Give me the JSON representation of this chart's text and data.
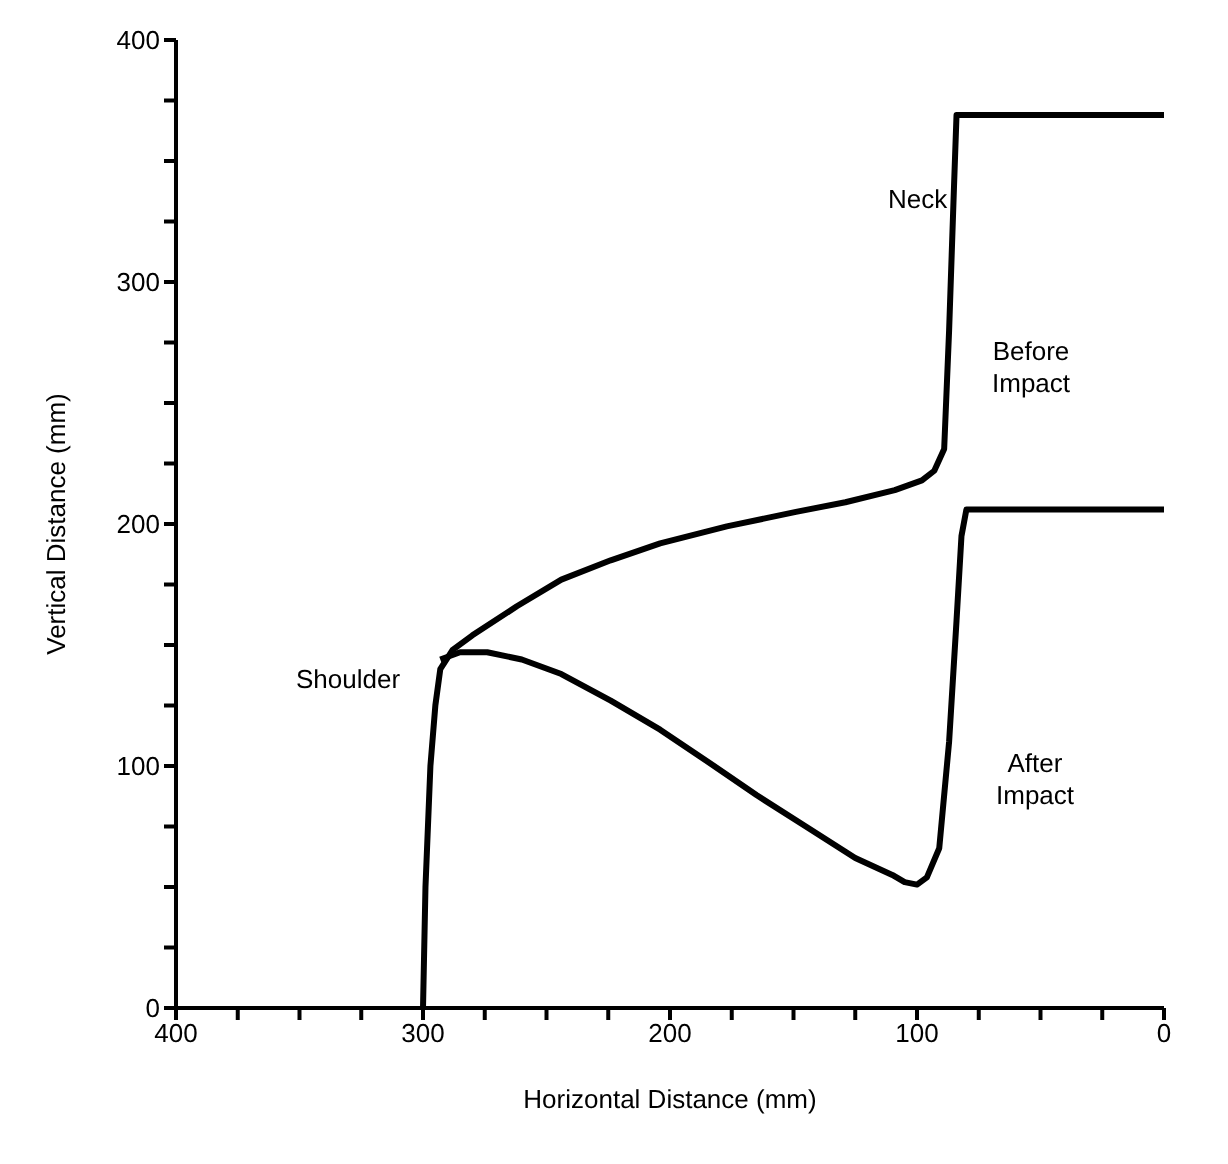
{
  "chart_data": {
    "type": "line",
    "xlabel": "Horizontal Distance (mm)",
    "ylabel": "Vertical Distance (mm)",
    "xlim": [
      400,
      0
    ],
    "ylim": [
      0,
      400
    ],
    "xticks": [
      400,
      {
        "value": 375,
        "label": null
      },
      {
        "value": 350,
        "label": null
      },
      {
        "value": 325,
        "label": null
      },
      300,
      {
        "value": 275,
        "label": null
      },
      {
        "value": 250,
        "label": null
      },
      {
        "value": 225,
        "label": null
      },
      200,
      {
        "value": 175,
        "label": null
      },
      {
        "value": 150,
        "label": null
      },
      {
        "value": 125,
        "label": null
      },
      100,
      {
        "value": 75,
        "label": null
      },
      {
        "value": 50,
        "label": null
      },
      {
        "value": 25,
        "label": null
      },
      0
    ],
    "yticks": [
      0,
      {
        "value": 25,
        "label": null
      },
      {
        "value": 50,
        "label": null
      },
      {
        "value": 75,
        "label": null
      },
      100,
      {
        "value": 125,
        "label": null
      },
      {
        "value": 150,
        "label": null
      },
      {
        "value": 175,
        "label": null
      },
      200,
      {
        "value": 225,
        "label": null
      },
      {
        "value": 250,
        "label": null
      },
      {
        "value": 275,
        "label": null
      },
      300,
      {
        "value": 325,
        "label": null
      },
      {
        "value": 350,
        "label": null
      },
      {
        "value": 375,
        "label": null
      },
      400
    ],
    "marker": "none",
    "line_style": "solid",
    "series": [
      {
        "name": "Before Impact",
        "color": "#000000",
        "x": [
          300,
          299,
          297,
          295,
          293,
          288,
          280,
          262,
          244,
          224,
          204,
          177,
          149,
          129,
          109,
          98,
          93,
          89,
          87,
          85,
          84,
          40,
          0
        ],
        "values": [
          0,
          50,
          100,
          125,
          140,
          148,
          154,
          166,
          177,
          185,
          192,
          199,
          205,
          209,
          214,
          218,
          222,
          231,
          280,
          340,
          369,
          369,
          369
        ]
      },
      {
        "name": "After Impact",
        "color": "#000000",
        "x": [
          293,
          285,
          274,
          260,
          244,
          224,
          204,
          185,
          165,
          145,
          125,
          110,
          105,
          100,
          96,
          91,
          87,
          84,
          82,
          80,
          40,
          0
        ],
        "values": [
          144,
          147,
          147,
          144,
          138,
          127,
          115,
          102,
          88,
          75,
          62,
          55,
          52,
          51,
          54,
          66,
          110,
          160,
          195,
          206,
          206,
          206
        ]
      }
    ],
    "annotations": [
      "Neck",
      "Shoulder"
    ]
  }
}
